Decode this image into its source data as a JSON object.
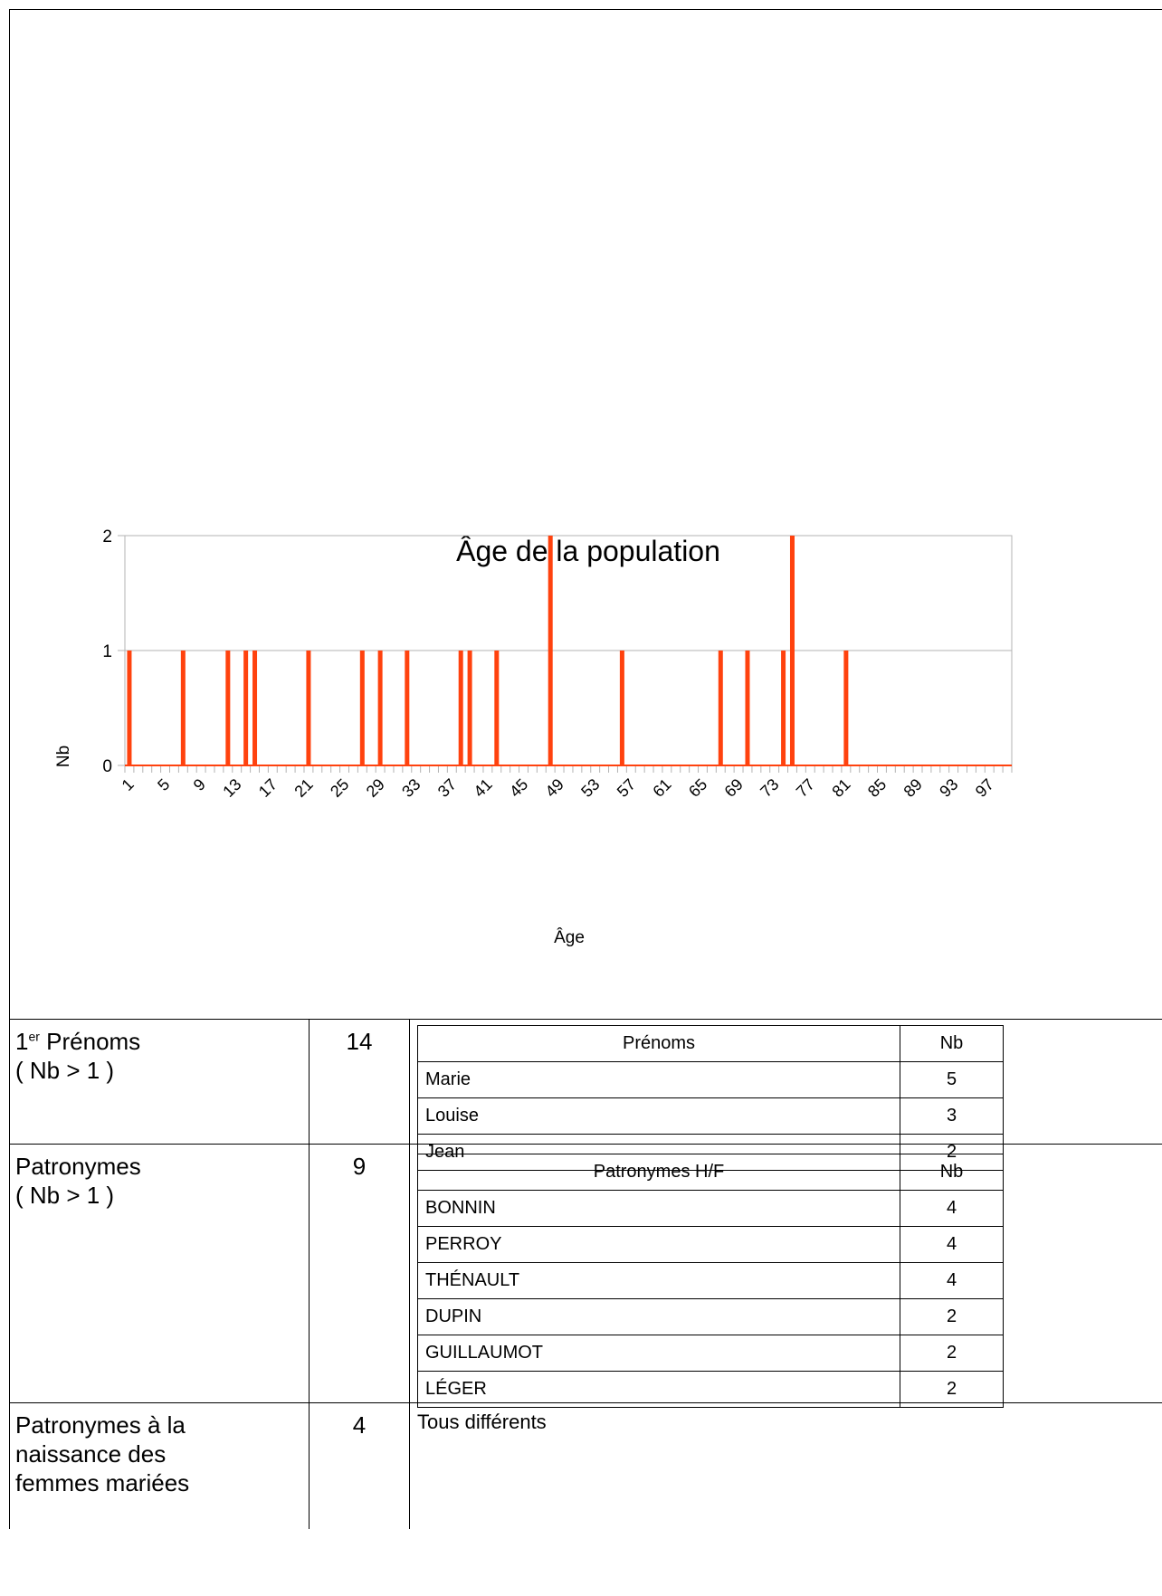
{
  "chart_data": {
    "type": "bar",
    "title": "Âge de la population",
    "xlabel": "Âge",
    "ylabel": "Nb",
    "ylim": [
      0,
      2
    ],
    "y_ticks": [
      0,
      1,
      2
    ],
    "x_tick_labels": [
      "1",
      "5",
      "9",
      "13",
      "17",
      "21",
      "25",
      "29",
      "33",
      "37",
      "41",
      "45",
      "49",
      "53",
      "57",
      "61",
      "65",
      "69",
      "73",
      "77",
      "81",
      "85",
      "89",
      "93",
      "97"
    ],
    "categories_range": [
      1,
      99
    ],
    "points": [
      {
        "x": 1,
        "y": 1
      },
      {
        "x": 7,
        "y": 1
      },
      {
        "x": 12,
        "y": 1
      },
      {
        "x": 14,
        "y": 1
      },
      {
        "x": 15,
        "y": 1
      },
      {
        "x": 21,
        "y": 1
      },
      {
        "x": 27,
        "y": 1
      },
      {
        "x": 29,
        "y": 1
      },
      {
        "x": 32,
        "y": 1
      },
      {
        "x": 38,
        "y": 1
      },
      {
        "x": 39,
        "y": 1
      },
      {
        "x": 42,
        "y": 1
      },
      {
        "x": 48,
        "y": 2
      },
      {
        "x": 56,
        "y": 1
      },
      {
        "x": 67,
        "y": 1
      },
      {
        "x": 70,
        "y": 1
      },
      {
        "x": 74,
        "y": 1
      },
      {
        "x": 75,
        "y": 2
      },
      {
        "x": 81,
        "y": 1
      }
    ],
    "bar_color": "#ff420e",
    "grid": true
  },
  "rows": {
    "prenoms": {
      "label_main": "1",
      "label_sup": "er",
      "label_rest": " Prénoms",
      "label_line2": "( Nb > 1 )",
      "count": "14",
      "table_header": [
        "Prénoms",
        "Nb"
      ],
      "table_rows": [
        [
          "Marie",
          "5"
        ],
        [
          "Louise",
          "3"
        ],
        [
          "Jean",
          "2"
        ]
      ]
    },
    "patronymes": {
      "label_line1": "Patronymes",
      "label_line2": "( Nb > 1 )",
      "count": "9",
      "table_header": [
        "Patronymes H/F",
        "Nb"
      ],
      "table_rows": [
        [
          "BONNIN",
          "4"
        ],
        [
          "PERROY",
          "4"
        ],
        [
          "THÉNAULT",
          "4"
        ],
        [
          "DUPIN",
          "2"
        ],
        [
          "GUILLAUMOT",
          "2"
        ],
        [
          "LÉGER",
          "2"
        ]
      ]
    },
    "naissance": {
      "label_line1": "Patronymes à la",
      "label_line2": "naissance des",
      "label_line3": "femmes mariées",
      "count": "4",
      "detail": "Tous différents"
    }
  }
}
